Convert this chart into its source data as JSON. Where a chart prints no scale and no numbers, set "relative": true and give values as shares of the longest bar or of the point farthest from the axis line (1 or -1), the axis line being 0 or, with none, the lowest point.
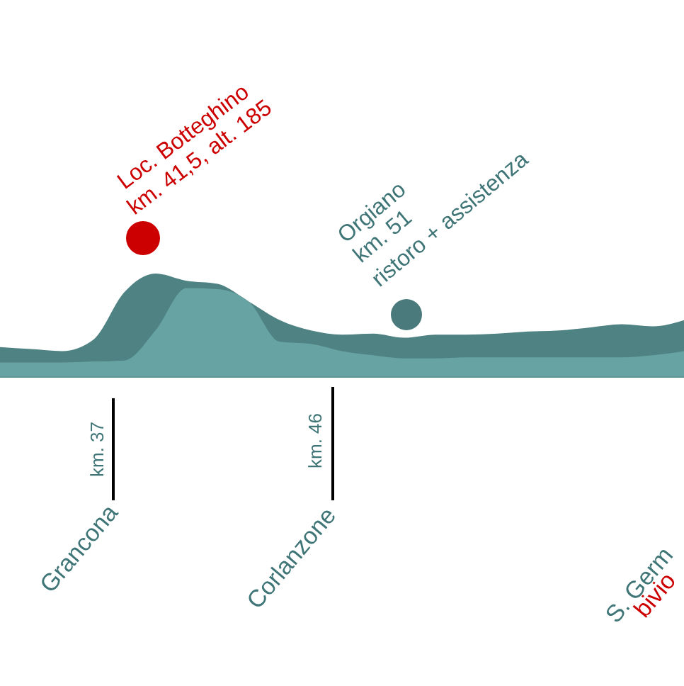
{
  "chart_data": {
    "type": "area",
    "relative": true,
    "categories": [
      null,
      null,
      null,
      null,
      null,
      null,
      null,
      null,
      null,
      null,
      null,
      null,
      null,
      null,
      null,
      null,
      null,
      null,
      null,
      null,
      null,
      null,
      null
    ],
    "series": [
      {
        "color": "#4f8283",
        "values": [
          0.29,
          0.27,
          0.25,
          0.36,
          0.82,
          1,
          0.93,
          0.9,
          0.73,
          0.55,
          0.45,
          0.41,
          0.42,
          0.38,
          0.41,
          0.41,
          0.42,
          0.44,
          0.45,
          0.48,
          0.51,
          0.49,
          0.55
        ]
      },
      {
        "color": "#68a3a4",
        "values": [
          0.14,
          0.14,
          0.14,
          0.15,
          0.16,
          0.45,
          0.86,
          0.85,
          0.73,
          0.34,
          0.32,
          0.25,
          0.21,
          0.18,
          0.18,
          0.19,
          0.19,
          0.19,
          0.19,
          0.19,
          0.19,
          0.21,
          0.25
        ]
      }
    ],
    "annotations": [
      "Loc. Botteghino",
      "km. 41,5, alt. 185",
      "Orgiano",
      "km. 51",
      "ristoro + assistenza",
      "km. 37",
      "km. 46",
      "Grancona",
      "Corlanzone",
      "S. Germ",
      "bivio"
    ]
  }
}
